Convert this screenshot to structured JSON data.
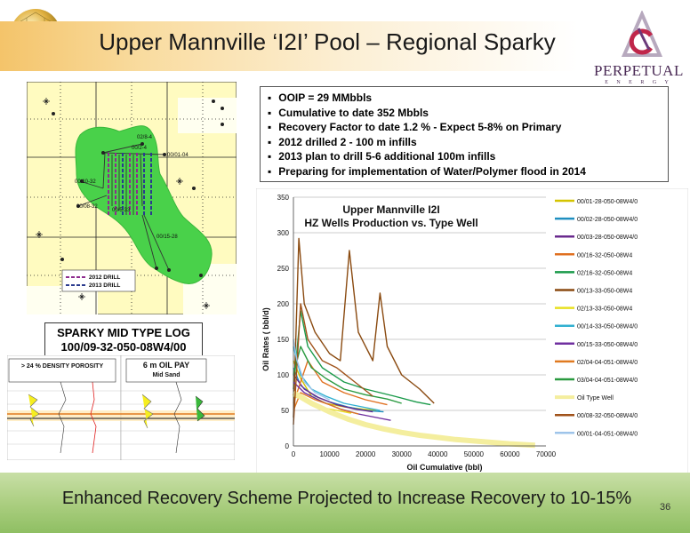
{
  "title": "Upper Mannville ‘I2I’ Pool – Regional Sparky",
  "logo": {
    "name": "PERPETUAL",
    "sub": "E N E R G Y"
  },
  "bullets": [
    "OOIP = 29 MMbbls",
    "Cumulative to date 352 Mbbls",
    "Recovery Factor to date 1.2 % - Expect 5-8% on Primary",
    "2012 drilled 2 - 100 m infills",
    "2013 plan to drill 5-6 additional 100m infills",
    "Preparing for implementation of Water/Polymer flood in 2014"
  ],
  "map": {
    "well_labels": [
      "02/8-4",
      "00/2-4",
      "00/01-04",
      "00/10-32",
      "00/08-32",
      "00/5-33",
      "00/15-28"
    ],
    "legend": [
      {
        "label": "2012 DRILL",
        "color": "#8e2a8e"
      },
      {
        "label": "2013 DRILL",
        "color": "#2a3a8e"
      }
    ],
    "colors": {
      "pool": "#49d14a",
      "grid_fill": "#fffbc0",
      "pale": "#fffbe6"
    }
  },
  "type_log": {
    "title_line1": "SPARKY MID TYPE LOG",
    "title_line2": "100/09-32-050-08W4/00",
    "porosity_label": "> 24 % DENSITY POROSITY",
    "pay_label_line1": "6 m  OIL PAY",
    "pay_label_line2": "Mid Sand"
  },
  "chart_data": {
    "type": "line",
    "title": "Upper Mannville I2I",
    "subtitle": "HZ Wells Production vs. Type  Well",
    "xlabel": "Oil Cumulative (bbl)",
    "ylabel": "Oil Rates ( bbl/d)",
    "xlim": [
      0,
      70000
    ],
    "ylim": [
      0,
      350
    ],
    "x_ticks": [
      0,
      10000,
      20000,
      30000,
      40000,
      50000,
      60000,
      70000
    ],
    "y_ticks": [
      0,
      50,
      100,
      150,
      200,
      250,
      300,
      350
    ],
    "legend_position": "right",
    "series": [
      {
        "name": "00/01-28-050-08W4/0",
        "color": "#d4c400",
        "points": [
          [
            0,
            120
          ],
          [
            2000,
            95
          ],
          [
            5000,
            70
          ],
          [
            9000,
            60
          ],
          [
            14000,
            55
          ],
          [
            19000,
            52
          ],
          [
            23000,
            50
          ]
        ]
      },
      {
        "name": "00/02-28-050-08W4/0",
        "color": "#1f8fc0",
        "points": [
          [
            0,
            110
          ],
          [
            2000,
            85
          ],
          [
            6000,
            70
          ],
          [
            10000,
            62
          ],
          [
            15000,
            55
          ],
          [
            20000,
            50
          ],
          [
            25000,
            48
          ]
        ]
      },
      {
        "name": "00/03-28-050-08W4/0",
        "color": "#6a2a8e",
        "points": [
          [
            0,
            100
          ],
          [
            3000,
            80
          ],
          [
            7000,
            68
          ],
          [
            12000,
            58
          ],
          [
            17000,
            52
          ],
          [
            22000,
            48
          ]
        ]
      },
      {
        "name": "00/16-32-050-08W4",
        "color": "#e07020",
        "points": [
          [
            0,
            60
          ],
          [
            4000,
            120
          ],
          [
            8000,
            90
          ],
          [
            14000,
            75
          ],
          [
            20000,
            65
          ],
          [
            26000,
            58
          ]
        ]
      },
      {
        "name": "02/16-32-050-08W4",
        "color": "#1a9a4a",
        "points": [
          [
            0,
            80
          ],
          [
            2000,
            190
          ],
          [
            4000,
            140
          ],
          [
            8000,
            110
          ],
          [
            14000,
            90
          ],
          [
            20000,
            80
          ],
          [
            28000,
            70
          ],
          [
            34000,
            62
          ],
          [
            38000,
            58
          ]
        ]
      },
      {
        "name": "00/13-33-050-08W4",
        "color": "#8a4a10",
        "points": [
          [
            0,
            40
          ],
          [
            1500,
            292
          ],
          [
            3000,
            200
          ],
          [
            6000,
            160
          ],
          [
            10000,
            130
          ],
          [
            13000,
            120
          ],
          [
            15500,
            275
          ],
          [
            18000,
            160
          ],
          [
            22000,
            120
          ],
          [
            24000,
            215
          ],
          [
            26000,
            140
          ],
          [
            30000,
            100
          ],
          [
            35000,
            80
          ],
          [
            39000,
            60
          ]
        ]
      },
      {
        "name": "02/13-33-050-08W4",
        "color": "#e8e020",
        "points": [
          [
            0,
            70
          ],
          [
            3000,
            65
          ],
          [
            7000,
            55
          ],
          [
            12000,
            50
          ],
          [
            16000,
            46
          ]
        ]
      },
      {
        "name": "00/14-33-050-08W4/0",
        "color": "#30b0d0",
        "points": [
          [
            0,
            140
          ],
          [
            2000,
            100
          ],
          [
            5000,
            80
          ],
          [
            9000,
            70
          ],
          [
            14000,
            60
          ],
          [
            19000,
            55
          ],
          [
            24000,
            50
          ]
        ]
      },
      {
        "name": "00/15-33-050-08W4/0",
        "color": "#7030a0",
        "points": [
          [
            0,
            90
          ],
          [
            3000,
            75
          ],
          [
            8000,
            62
          ],
          [
            13000,
            52
          ],
          [
            18000,
            45
          ],
          [
            23000,
            40
          ],
          [
            27000,
            36
          ]
        ]
      },
      {
        "name": "02/04-04-051-08W4/0",
        "color": "#e07a20",
        "points": [
          [
            0,
            50
          ],
          [
            2000,
            75
          ],
          [
            6000,
            65
          ],
          [
            10000,
            58
          ],
          [
            14000,
            50
          ],
          [
            18000,
            45
          ]
        ]
      },
      {
        "name": "03/04-04-051-08W4/0",
        "color": "#2a9a40",
        "points": [
          [
            0,
            100
          ],
          [
            2000,
            140
          ],
          [
            5000,
            110
          ],
          [
            9000,
            95
          ],
          [
            14000,
            80
          ],
          [
            20000,
            72
          ],
          [
            26000,
            66
          ],
          [
            30000,
            60
          ]
        ]
      },
      {
        "name": "Oil Type Well",
        "color": "#f4ee9e",
        "points": [
          [
            0,
            75
          ],
          [
            5000,
            60
          ],
          [
            10000,
            48
          ],
          [
            15000,
            38
          ],
          [
            20000,
            30
          ],
          [
            25000,
            24
          ],
          [
            30000,
            19
          ],
          [
            35000,
            15
          ],
          [
            40000,
            12
          ],
          [
            45000,
            9
          ],
          [
            50000,
            7
          ],
          [
            55000,
            5
          ],
          [
            60000,
            3
          ],
          [
            67000,
            1
          ]
        ]
      },
      {
        "name": "00/08-32-050-08W4/0",
        "color": "#a0521a",
        "points": [
          [
            0,
            30
          ],
          [
            2000,
            200
          ],
          [
            4000,
            150
          ],
          [
            8000,
            120
          ],
          [
            12000,
            110
          ],
          [
            17000,
            90
          ],
          [
            22000,
            70
          ]
        ]
      },
      {
        "name": "00/01-04-051-08W4/0",
        "color": "#9ec4ea",
        "points": [
          [
            0,
            150
          ],
          [
            1000,
            120
          ],
          [
            3000,
            90
          ],
          [
            6000,
            75
          ],
          [
            10000,
            65
          ]
        ]
      }
    ]
  },
  "footer": "Enhanced Recovery Scheme Projected to Increase Recovery to 10-15%",
  "page_number": "36"
}
